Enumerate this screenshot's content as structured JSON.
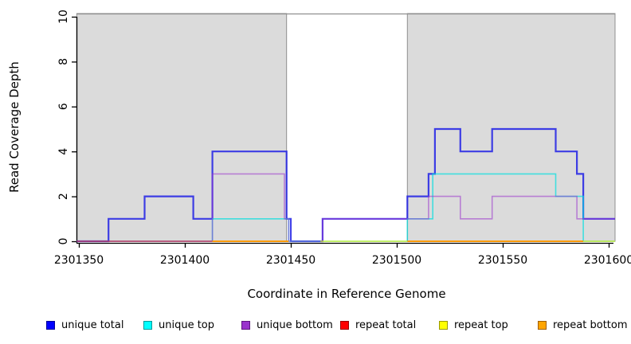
{
  "chart_data": {
    "type": "line",
    "subtype": "step-coverage",
    "title": "",
    "xlabel": "Coordinate in Reference Genome",
    "ylabel": "Read Coverage Depth",
    "xlim": [
      2301349,
      2301603
    ],
    "ylim": [
      0,
      10
    ],
    "x_ticks": [
      2301350,
      2301400,
      2301450,
      2301500,
      2301550,
      2301600
    ],
    "y_ticks": [
      0,
      2,
      4,
      6,
      8,
      10
    ],
    "grid": false,
    "legend_position": "bottom",
    "background_regions": {
      "fill": "#DBDBDB",
      "border": "#8F8F8F",
      "ranges": [
        [
          2301349,
          2301448
        ],
        [
          2301505,
          2301603
        ]
      ]
    },
    "series": [
      {
        "name": "unique total",
        "legend_fill": "#0000FF",
        "legend_border": "#000099",
        "color": "#2121E5",
        "opacity": 0.85,
        "width": 2.2,
        "segments": [
          [
            [
              2301349,
              0
            ],
            [
              2301364,
              1
            ],
            [
              2301381,
              2
            ],
            [
              2301404,
              1
            ],
            [
              2301413,
              4
            ],
            [
              2301448,
              1
            ],
            [
              2301450,
              0
            ],
            [
              2301465,
              1
            ],
            [
              2301505,
              2
            ],
            [
              2301515,
              3
            ],
            [
              2301518,
              5
            ],
            [
              2301530,
              4
            ],
            [
              2301545,
              5
            ],
            [
              2301575,
              4
            ],
            [
              2301585,
              3
            ],
            [
              2301588,
              1
            ],
            [
              2301603,
              1
            ]
          ]
        ]
      },
      {
        "name": "unique top",
        "legend_fill": "#00FFFF",
        "legend_border": "#009999",
        "color": "#00E0E0",
        "opacity": 0.7,
        "width": 1.6,
        "segments": [
          [
            [
              2301349,
              0
            ],
            [
              2301413,
              1
            ],
            [
              2301449,
              0
            ],
            [
              2301505,
              1
            ],
            [
              2301517,
              3
            ],
            [
              2301575,
              2
            ],
            [
              2301588,
              0
            ],
            [
              2301603,
              0
            ]
          ]
        ]
      },
      {
        "name": "unique bottom",
        "legend_fill": "#9932CC",
        "legend_border": "#5E1680",
        "color": "#9932CC",
        "opacity": 0.55,
        "width": 1.6,
        "segments": [
          [
            [
              2301349,
              0
            ],
            [
              2301413,
              3
            ],
            [
              2301447,
              1
            ],
            [
              2301449,
              0
            ],
            [
              2301465,
              1
            ],
            [
              2301515,
              2
            ],
            [
              2301530,
              1
            ],
            [
              2301545,
              2
            ],
            [
              2301585,
              1
            ],
            [
              2301603,
              1
            ]
          ]
        ]
      },
      {
        "name": "repeat total",
        "legend_fill": "#FF0000",
        "legend_border": "#990000",
        "color": "#FF0000",
        "opacity": 0.55,
        "width": 1.6,
        "segments": [
          [
            [
              2301349,
              0
            ],
            [
              2301413,
              0
            ]
          ]
        ]
      },
      {
        "name": "repeat top",
        "legend_fill": "#FFFF00",
        "legend_border": "#999900",
        "color": "#EEEE00",
        "opacity": 0.75,
        "width": 1.6,
        "segments": [
          [
            [
              2301464,
              0
            ],
            [
              2301505,
              0
            ]
          ],
          [
            [
              2301588,
              0
            ],
            [
              2301603,
              0
            ]
          ]
        ]
      },
      {
        "name": "repeat bottom",
        "legend_fill": "#FFA500",
        "legend_border": "#A05E00",
        "color": "#FF9900",
        "opacity": 0.95,
        "width": 2.0,
        "segments": [
          [
            [
              2301413,
              0
            ],
            [
              2301449,
              0
            ]
          ],
          [
            [
              2301505,
              0
            ],
            [
              2301588,
              0
            ]
          ]
        ]
      }
    ]
  }
}
